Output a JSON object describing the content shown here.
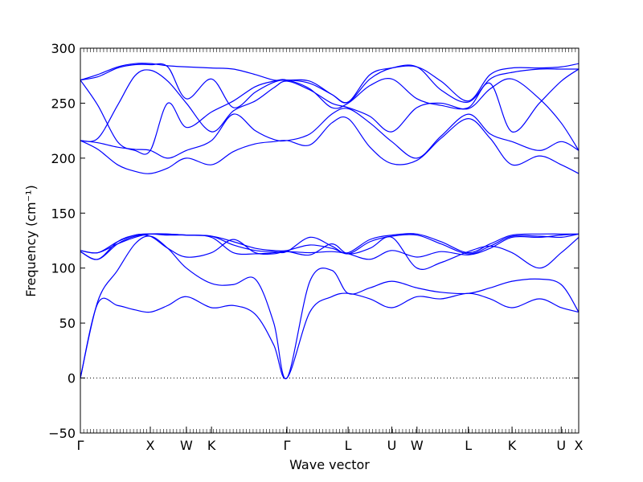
{
  "chart_data": {
    "type": "line",
    "title": "",
    "xlabel": "Wave vector",
    "ylabel": "Frequency (cm⁻¹)",
    "ylim": [
      -50,
      300
    ],
    "yticks": [
      -50,
      0,
      50,
      100,
      150,
      200,
      250,
      300
    ],
    "ytick_labels": [
      "−50",
      "0",
      "50",
      "100",
      "150",
      "200",
      "250",
      "300"
    ],
    "xlim": [
      0,
      4.56
    ],
    "high_symmetry_points": [
      {
        "label": "Γ",
        "x": 0.0
      },
      {
        "label": "X",
        "x": 0.64
      },
      {
        "label": "W",
        "x": 0.97
      },
      {
        "label": "K",
        "x": 1.2
      },
      {
        "label": "Γ",
        "x": 1.89
      },
      {
        "label": "L",
        "x": 2.45
      },
      {
        "label": "U",
        "x": 2.85
      },
      {
        "label": "W",
        "x": 3.08
      },
      {
        "label": "L",
        "x": 3.55
      },
      {
        "label": "K",
        "x": 3.95
      },
      {
        "label": "U",
        "x": 4.4
      },
      {
        "label": "X",
        "x": 4.56
      }
    ],
    "zero_line": {
      "y": 0,
      "style": "dotted"
    },
    "line_color": "#0000ff",
    "series": [
      {
        "x": [
          0.0,
          0.16,
          0.34,
          0.5,
          0.64,
          0.8,
          0.97,
          1.2,
          1.4,
          1.6,
          1.77,
          1.89,
          2.1,
          2.3,
          2.45,
          2.65,
          2.85,
          3.08,
          3.3,
          3.55,
          3.75,
          3.95,
          4.2,
          4.4,
          4.56
        ],
        "y": [
          0,
          68,
          66,
          62,
          60,
          66,
          74,
          64,
          66,
          58,
          30,
          0,
          60,
          74,
          77,
          72,
          64,
          74,
          72,
          77,
          72,
          64,
          72,
          64,
          60
        ]
      },
      {
        "x": [
          0.0,
          0.16,
          0.34,
          0.5,
          0.64,
          0.8,
          0.97,
          1.2,
          1.4,
          1.6,
          1.77,
          1.89,
          2.1,
          2.3,
          2.45,
          2.65,
          2.85,
          3.08,
          3.3,
          3.55,
          3.75,
          3.95,
          4.2,
          4.4,
          4.56
        ],
        "y": [
          0,
          70,
          98,
          122,
          129,
          118,
          100,
          86,
          85,
          90,
          50,
          0,
          88,
          98,
          77,
          82,
          88,
          82,
          78,
          77,
          82,
          88,
          90,
          85,
          60
        ]
      },
      {
        "x": [
          0.0,
          0.16,
          0.34,
          0.5,
          0.64,
          0.8,
          0.97,
          1.2,
          1.4,
          1.6,
          1.77,
          1.89,
          2.1,
          2.3,
          2.45,
          2.65,
          2.85,
          3.08,
          3.3,
          3.55,
          3.75,
          3.95,
          4.2,
          4.4,
          4.56
        ],
        "y": [
          115,
          108,
          122,
          129,
          129,
          118,
          110,
          114,
          126,
          114,
          113,
          115,
          112,
          122,
          113,
          118,
          128,
          100,
          105,
          115,
          120,
          114,
          100,
          114,
          128
        ]
      },
      {
        "x": [
          0.0,
          0.16,
          0.34,
          0.5,
          0.64,
          0.8,
          0.97,
          1.2,
          1.4,
          1.6,
          1.77,
          1.89,
          2.1,
          2.3,
          2.45,
          2.65,
          2.85,
          3.08,
          3.3,
          3.55,
          3.75,
          3.95,
          4.2,
          4.4,
          4.56
        ],
        "y": [
          115,
          108,
          124,
          130,
          131,
          130,
          130,
          128,
          114,
          113,
          114,
          115,
          114,
          115,
          113,
          108,
          116,
          110,
          115,
          112,
          118,
          128,
          128,
          130,
          131
        ]
      },
      {
        "x": [
          0.0,
          0.16,
          0.34,
          0.5,
          0.64,
          0.8,
          0.97,
          1.2,
          1.4,
          1.6,
          1.77,
          1.89,
          2.1,
          2.3,
          2.45,
          2.65,
          2.85,
          3.08,
          3.3,
          3.55,
          3.75,
          3.95,
          4.2,
          4.4,
          4.56
        ],
        "y": [
          116,
          114,
          122,
          128,
          131,
          131,
          130,
          129,
          121,
          116,
          115,
          115,
          128,
          120,
          113,
          124,
          129,
          130,
          122,
          113,
          120,
          129,
          129,
          128,
          131
        ]
      },
      {
        "x": [
          0.0,
          0.16,
          0.34,
          0.5,
          0.64,
          0.8,
          0.97,
          1.2,
          1.4,
          1.6,
          1.77,
          1.89,
          2.1,
          2.3,
          2.45,
          2.65,
          2.85,
          3.08,
          3.3,
          3.55,
          3.75,
          3.95,
          4.2,
          4.4,
          4.56
        ],
        "y": [
          116,
          114,
          124,
          130,
          131,
          131,
          130,
          129,
          124,
          118,
          116,
          116,
          121,
          118,
          114,
          126,
          130,
          131,
          124,
          114,
          122,
          130,
          131,
          131,
          131
        ]
      },
      {
        "x": [
          0.0,
          0.16,
          0.34,
          0.5,
          0.64,
          0.8,
          0.97,
          1.2,
          1.4,
          1.6,
          1.77,
          1.89,
          2.1,
          2.3,
          2.45,
          2.65,
          2.85,
          3.08,
          3.3,
          3.55,
          3.75,
          3.95,
          4.2,
          4.4,
          4.56
        ],
        "y": [
          216,
          208,
          194,
          188,
          186,
          191,
          200,
          194,
          206,
          213,
          215,
          216,
          212,
          232,
          236,
          210,
          195,
          198,
          218,
          236,
          218,
          194,
          202,
          194,
          186
        ]
      },
      {
        "x": [
          0.0,
          0.16,
          0.34,
          0.5,
          0.64,
          0.8,
          0.97,
          1.2,
          1.4,
          1.6,
          1.77,
          1.89,
          2.1,
          2.3,
          2.45,
          2.65,
          2.85,
          3.08,
          3.3,
          3.55,
          3.75,
          3.95,
          4.2,
          4.4,
          4.56
        ],
        "y": [
          216,
          214,
          210,
          208,
          207,
          200,
          207,
          216,
          240,
          225,
          217,
          216,
          222,
          240,
          245,
          232,
          215,
          200,
          220,
          240,
          222,
          215,
          207,
          215,
          207
        ]
      },
      {
        "x": [
          0.0,
          0.16,
          0.34,
          0.5,
          0.64,
          0.8,
          0.97,
          1.2,
          1.4,
          1.6,
          1.77,
          1.89,
          2.1,
          2.3,
          2.45,
          2.65,
          2.85,
          3.08,
          3.3,
          3.55,
          3.75,
          3.95,
          4.2,
          4.4,
          4.56
        ],
        "y": [
          216,
          218,
          248,
          275,
          280,
          270,
          250,
          224,
          243,
          252,
          264,
          270,
          262,
          250,
          246,
          238,
          224,
          246,
          250,
          245,
          263,
          272,
          254,
          232,
          207
        ]
      },
      {
        "x": [
          0.0,
          0.16,
          0.34,
          0.5,
          0.64,
          0.8,
          0.97,
          1.2,
          1.4,
          1.6,
          1.77,
          1.89,
          2.1,
          2.3,
          2.45,
          2.65,
          2.85,
          3.08,
          3.3,
          3.55,
          3.75,
          3.95,
          4.2,
          4.4,
          4.56
        ],
        "y": [
          271,
          248,
          215,
          207,
          207,
          250,
          228,
          242,
          252,
          265,
          270,
          271,
          263,
          246,
          250,
          266,
          272,
          254,
          248,
          246,
          268,
          224,
          250,
          270,
          281
        ]
      },
      {
        "x": [
          0.0,
          0.16,
          0.34,
          0.5,
          0.64,
          0.8,
          0.97,
          1.2,
          1.4,
          1.6,
          1.77,
          1.89,
          2.1,
          2.3,
          2.45,
          2.65,
          2.85,
          3.08,
          3.3,
          3.55,
          3.75,
          3.95,
          4.2,
          4.4,
          4.56
        ],
        "y": [
          271,
          274,
          282,
          285,
          285,
          283,
          254,
          272,
          246,
          260,
          269,
          271,
          268,
          258,
          251,
          272,
          282,
          283,
          262,
          251,
          272,
          278,
          281,
          281,
          281
        ]
      },
      {
        "x": [
          0.0,
          0.16,
          0.34,
          0.5,
          0.64,
          0.8,
          0.97,
          1.2,
          1.4,
          1.6,
          1.77,
          1.89,
          2.1,
          2.3,
          2.45,
          2.65,
          2.85,
          3.08,
          3.3,
          3.55,
          3.75,
          3.95,
          4.2,
          4.4,
          4.56
        ],
        "y": [
          271,
          276,
          283,
          286,
          286,
          284,
          283,
          282,
          281,
          276,
          271,
          271,
          270,
          258,
          251,
          276,
          282,
          283,
          270,
          252,
          276,
          282,
          282,
          283,
          286
        ]
      }
    ]
  }
}
